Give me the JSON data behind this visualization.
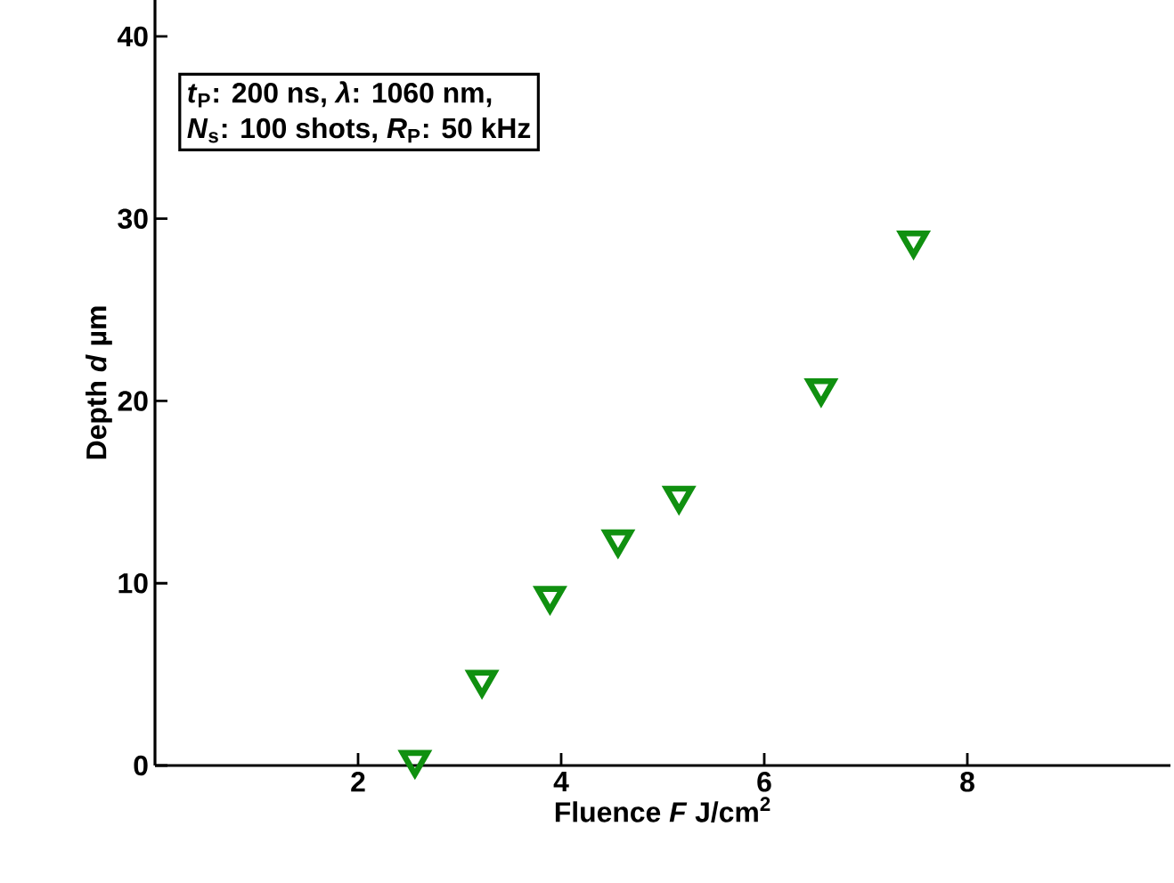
{
  "chart_data": {
    "type": "scatter",
    "xlabel": "Fluence *F* J/cm$^{2}$",
    "ylabel": "Depth *d* µm",
    "annotations": [
      "*t*$_{P}$: 200 ns, *λ*: 1060 nm,",
      "*N*$_{s}$: 100 shots, *R*$_{P}$: 50 kHz"
    ],
    "x": [
      2.56,
      3.22,
      3.89,
      4.56,
      5.16,
      6.56,
      7.47
    ],
    "series": [
      {
        "color": "#109010",
        "values": [
          0.3,
          4.7,
          9.3,
          12.4,
          14.8,
          20.7,
          28.8
        ]
      }
    ],
    "marker": "triangle",
    "xlim": [
      0,
      10
    ],
    "ylim": [
      0,
      42
    ],
    "xticks": [
      2,
      4,
      6,
      8
    ],
    "yticks": [
      0,
      10,
      20,
      30,
      40
    ]
  }
}
